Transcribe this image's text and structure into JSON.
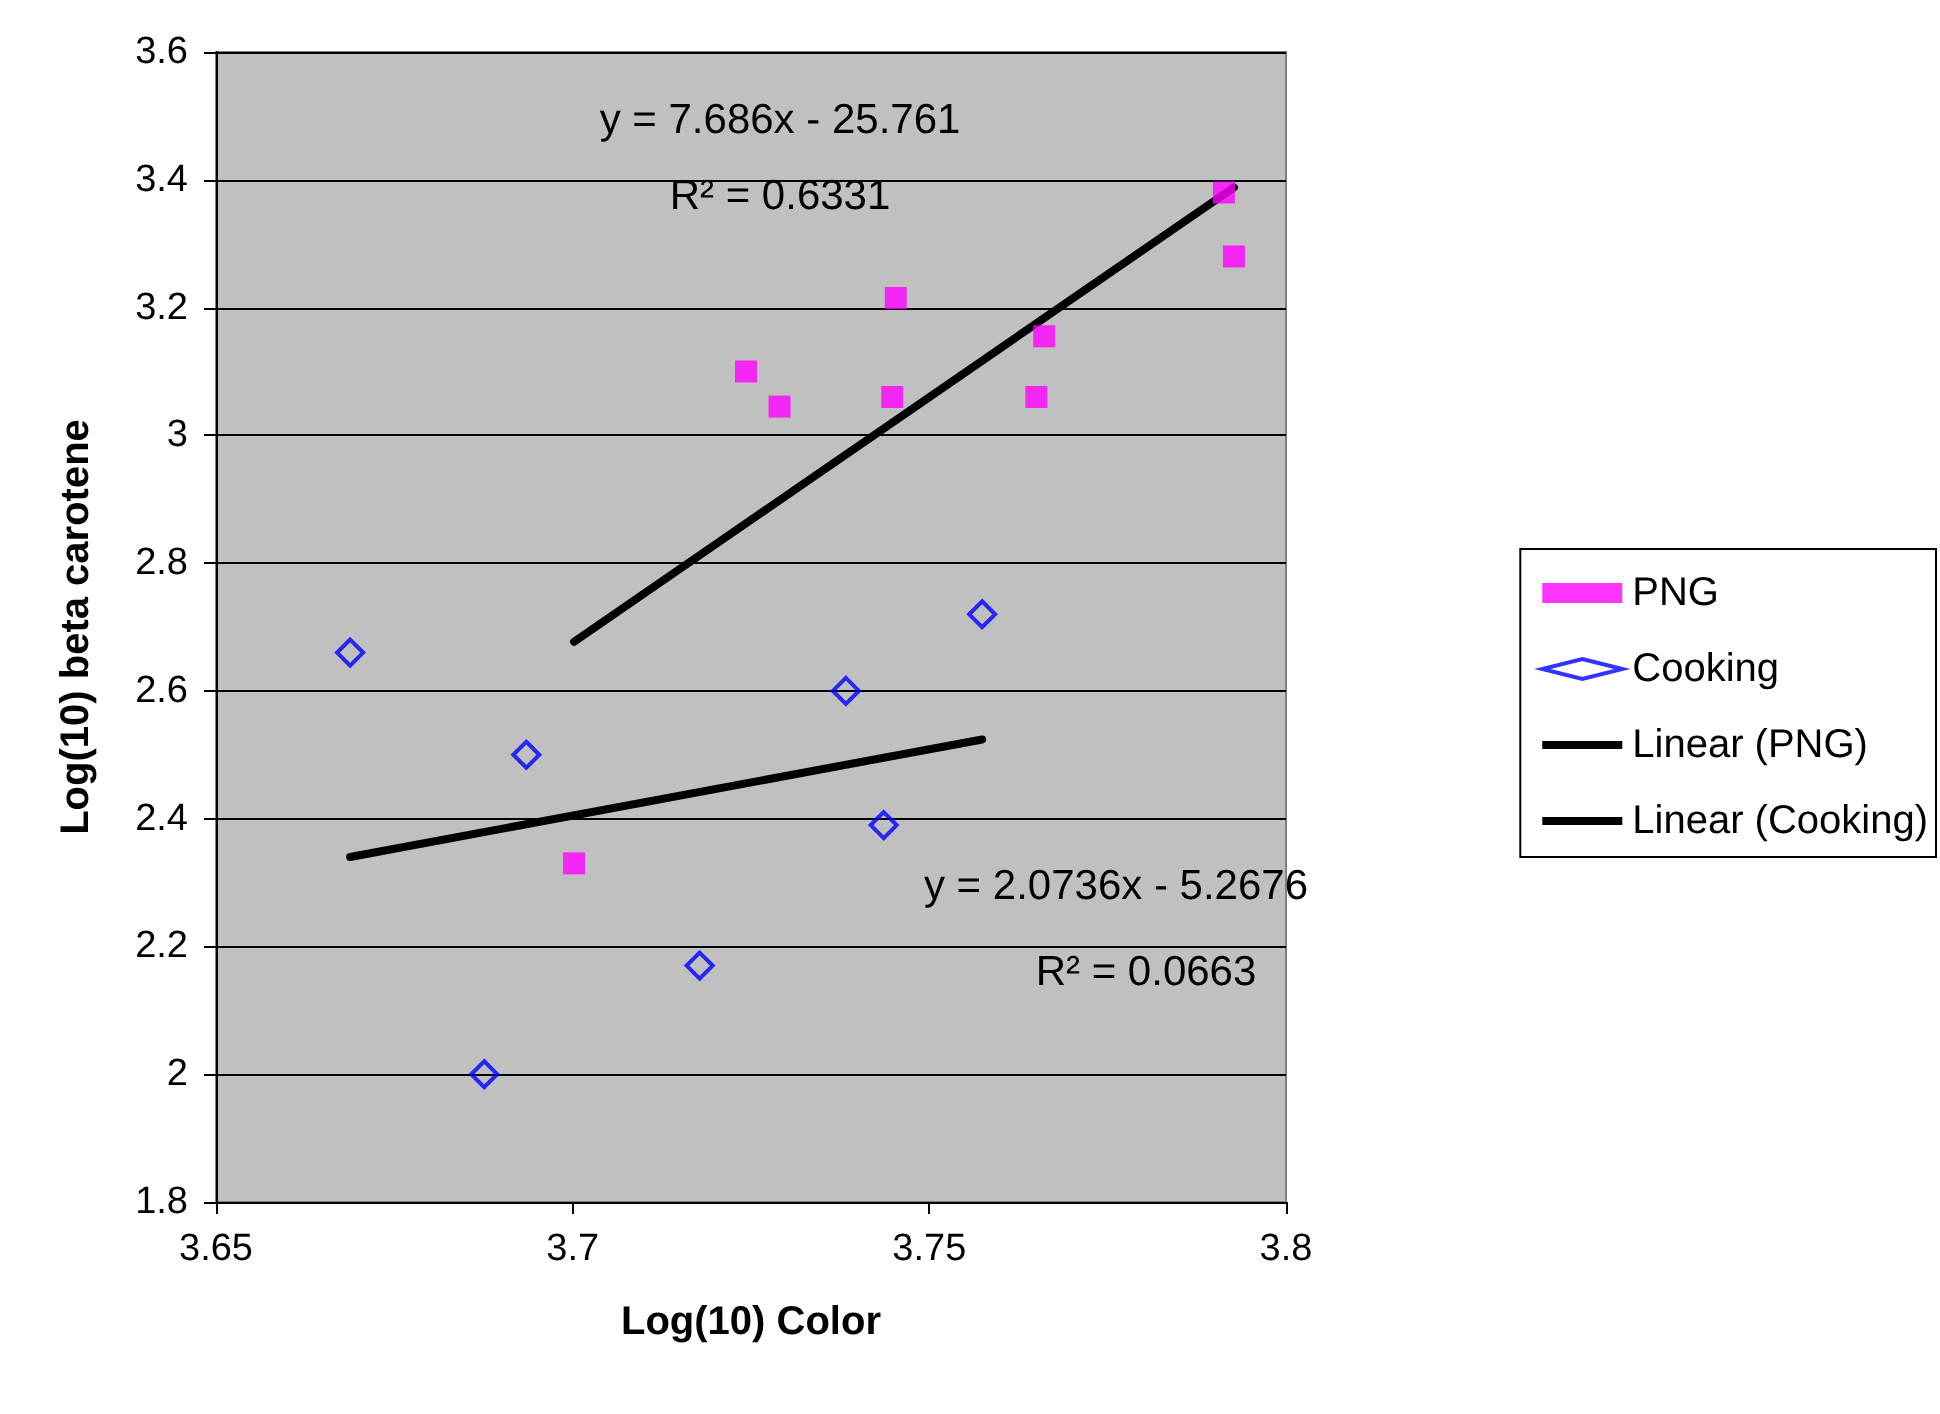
{
  "chart_data": {
    "type": "scatter",
    "xlabel": "Log(10) Color",
    "ylabel": "Log(10) beta carotene",
    "xlim": [
      3.65,
      3.8
    ],
    "xticks": [
      3.65,
      3.7,
      3.75,
      3.8
    ],
    "ylim": [
      1.8,
      3.6
    ],
    "yticks": [
      1.8,
      2,
      2.2,
      2.4,
      2.6,
      2.8,
      3,
      3.2,
      3.4,
      3.6
    ],
    "grid": "y",
    "legend": "right",
    "annotations": [
      "y = 7.686x - 25.761",
      "R² = 0.6331",
      "y = 2.0736x - 5.2676",
      "R² = 0.0663"
    ],
    "series": [
      {
        "name": "PNG",
        "marker": "square",
        "color": "#ff00ff",
        "x": [
          3.7913,
          3.7927,
          3.7453,
          3.7661,
          3.7243,
          3.729,
          3.7448,
          3.765,
          3.7002
        ],
        "values": [
          3.38,
          3.28,
          3.215,
          3.155,
          3.1,
          3.045,
          3.06,
          3.06,
          2.33
        ]
      },
      {
        "name": "Cooking",
        "marker": "diamond",
        "color": "#0000ff",
        "x": [
          3.6688,
          3.6935,
          3.6876,
          3.7178,
          3.7383,
          3.7436,
          3.7574
        ],
        "values": [
          2.66,
          2.5,
          2.0,
          2.17,
          2.6,
          2.39,
          2.72
        ]
      },
      {
        "name": "Linear (PNG)",
        "type": "line",
        "marker": "none",
        "line_style": "solid",
        "color": "#000000",
        "x": [
          3.7002,
          3.7927
        ],
        "values": [
          2.677,
          3.388
        ]
      },
      {
        "name": "Linear (Cooking)",
        "type": "line",
        "marker": "none",
        "line_style": "solid",
        "color": "#000000",
        "x": [
          3.6688,
          3.7574
        ],
        "values": [
          2.34,
          2.524
        ]
      }
    ]
  }
}
